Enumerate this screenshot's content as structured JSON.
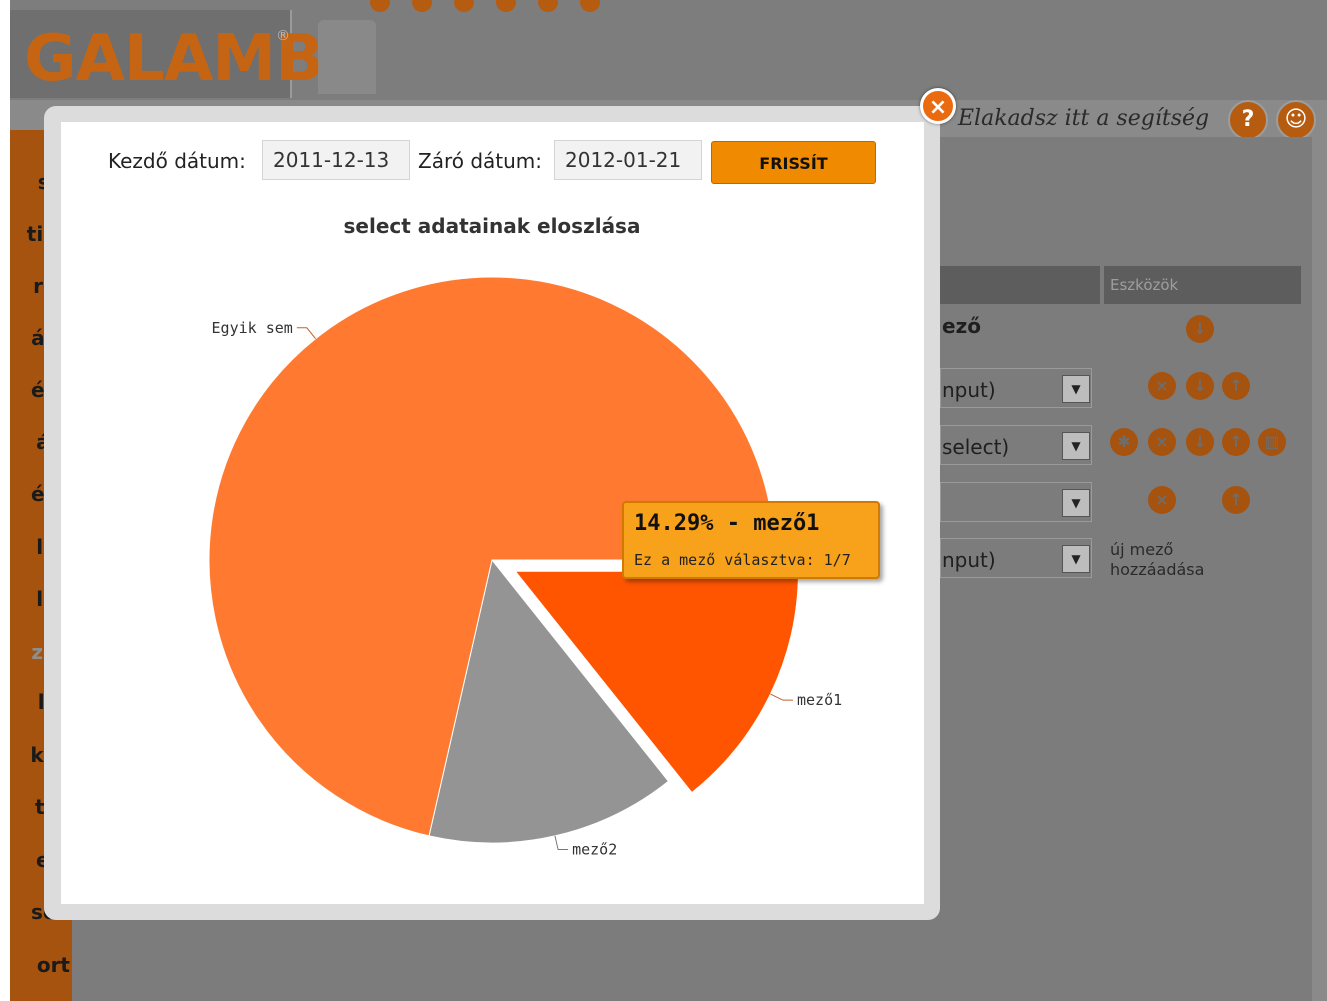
{
  "app": {
    "logo_text": "GALAMB",
    "logo_mark": "®",
    "help_text": "Elakadsz itt a segítség",
    "help_icon": "?",
    "help_icon2": "☺"
  },
  "sidebar": {
    "items": [
      "sai",
      "tika",
      "rők",
      "ása",
      "ése",
      "ája",
      "ése",
      "lek",
      "lek",
      "zők",
      "lás",
      "kek",
      "tés",
      "ele",
      "sók",
      "ort"
    ]
  },
  "background": {
    "tools_header": "Eszközök",
    "field_header": "ező",
    "rows": [
      "nput)",
      "select)",
      "",
      "nput)"
    ],
    "new_field": [
      "új mező",
      "hozzáadása"
    ]
  },
  "modal": {
    "start_label": "Kezdő dátum:",
    "start_value": "2011-12-13",
    "end_label": "Záró dátum:",
    "end_value": "2012-01-21",
    "refresh_label": "FRISSÍT",
    "close_icon": "×"
  },
  "chart_data": {
    "type": "pie",
    "title": "select adatainak eloszlása",
    "categories": [
      "Egyik sem",
      "mező1",
      "mező2"
    ],
    "values": [
      5,
      1,
      1
    ],
    "percentages": [
      71.43,
      14.29,
      14.29
    ],
    "colors": [
      "#ff7a30",
      "#ff5500",
      "#949494"
    ],
    "exploded": "mező1"
  },
  "tooltip": {
    "title": "14.29% - mező1",
    "subtitle": "Ez a mező választva: 1/7"
  }
}
